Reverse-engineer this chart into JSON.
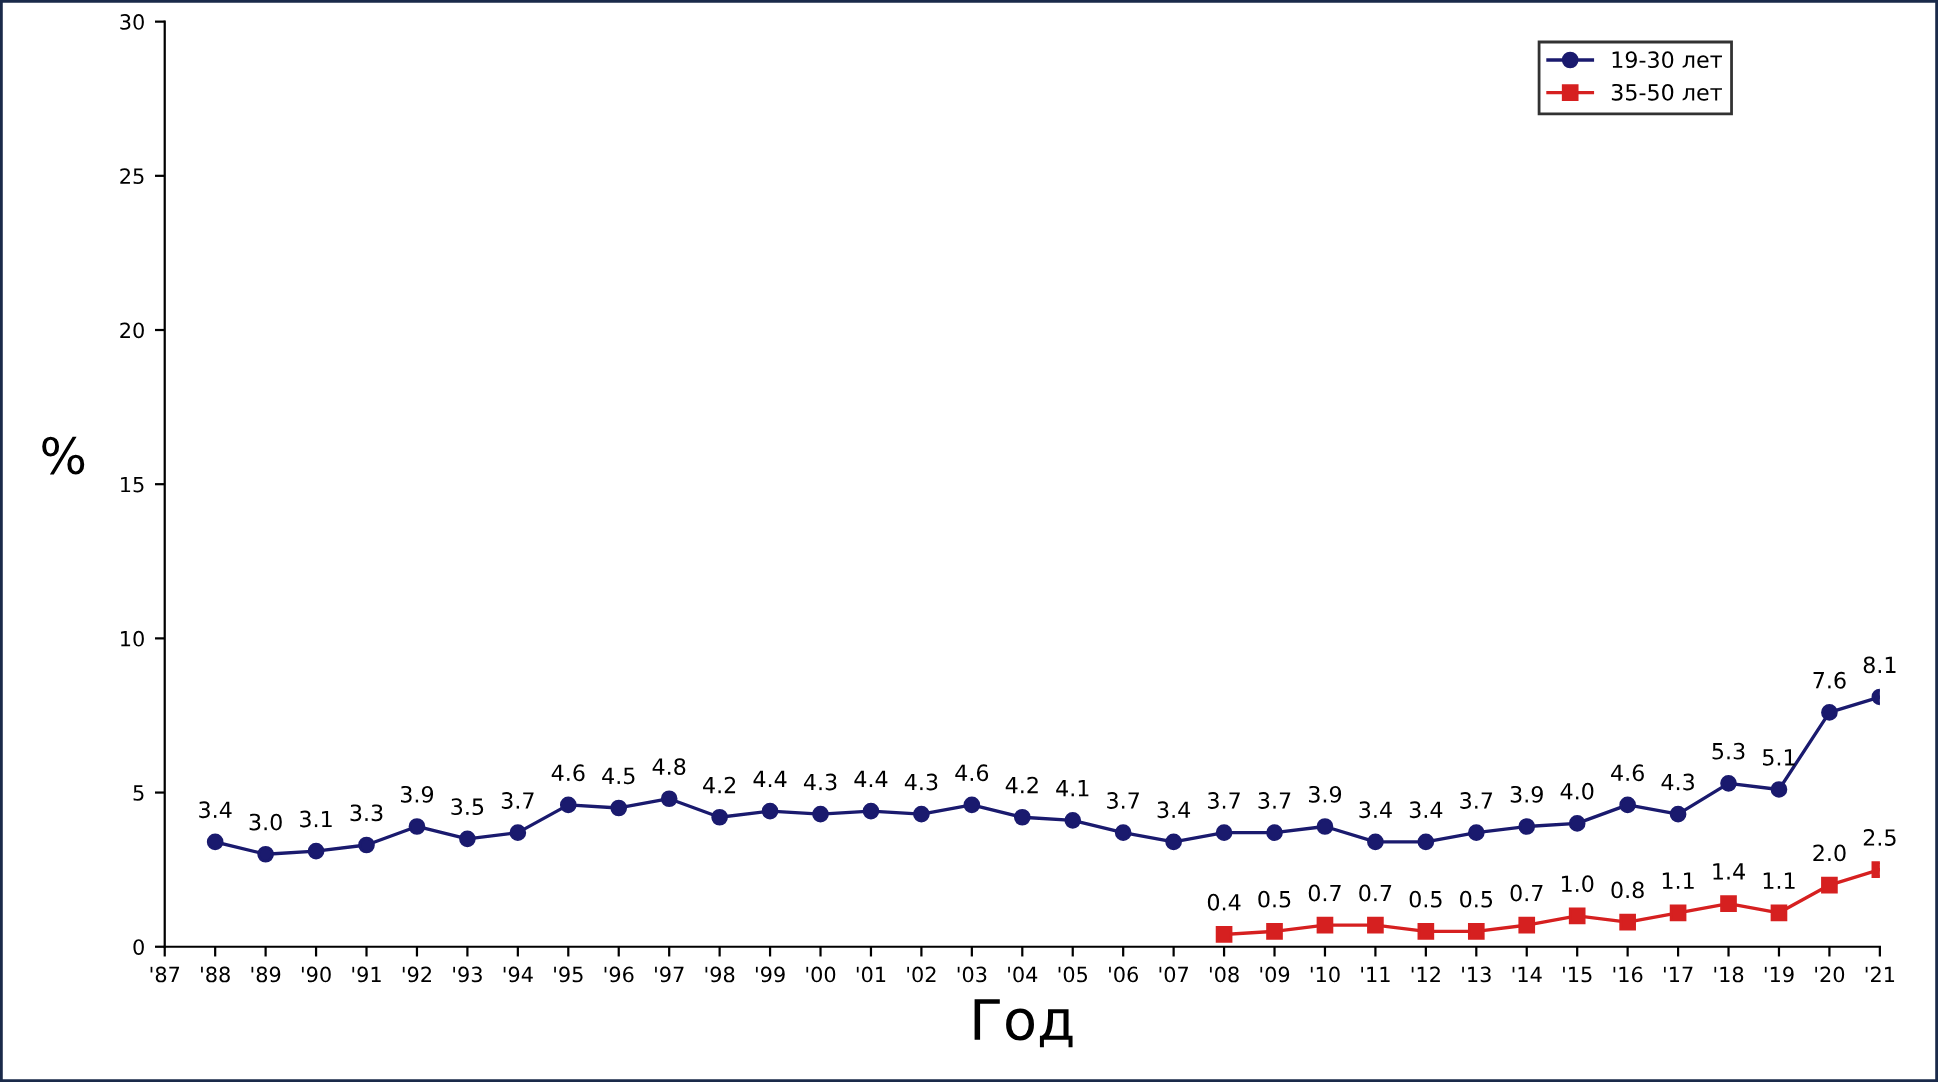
{
  "chart_data": {
    "type": "line",
    "xlabel": "Год",
    "ylabel": "%",
    "categories": [
      "'87",
      "'88",
      "'89",
      "'90",
      "'91",
      "'92",
      "'93",
      "'94",
      "'95",
      "'96",
      "'97",
      "'98",
      "'99",
      "'00",
      "'01",
      "'02",
      "'03",
      "'04",
      "'05",
      "'06",
      "'07",
      "'08",
      "'09",
      "'10",
      "'11",
      "'12",
      "'13",
      "'14",
      "'15",
      "'16",
      "'17",
      "'18",
      "'19",
      "'20",
      "'21"
    ],
    "series": [
      {
        "name": "19-30 лет",
        "color": "#1a1a6e",
        "marker": "circle",
        "values": [
          null,
          3.4,
          3.0,
          3.1,
          3.3,
          3.9,
          3.5,
          3.7,
          4.6,
          4.5,
          4.8,
          4.2,
          4.4,
          4.3,
          4.4,
          4.3,
          4.6,
          4.2,
          4.1,
          3.7,
          3.4,
          3.7,
          3.7,
          3.9,
          3.4,
          3.4,
          3.7,
          3.9,
          4.0,
          4.6,
          4.3,
          5.3,
          5.1,
          7.6,
          8.1
        ],
        "value_labels": [
          null,
          "3.4",
          "3.0",
          "3.1",
          "3.3",
          "3.9",
          "3.5",
          "3.7",
          "4.6",
          "4.5",
          "4.8",
          "4.2",
          "4.4",
          "4.3",
          "4.4",
          "4.3",
          "4.6",
          "4.2",
          "4.1",
          "3.7",
          "3.4",
          "3.7",
          "3.7",
          "3.9",
          "3.4",
          "3.4",
          "3.7",
          "3.9",
          "4.0",
          "4.6",
          "4.3",
          "5.3",
          "5.1",
          "7.6",
          "8.1"
        ]
      },
      {
        "name": "35-50 лет",
        "color": "#d62020",
        "marker": "square",
        "values": [
          null,
          null,
          null,
          null,
          null,
          null,
          null,
          null,
          null,
          null,
          null,
          null,
          null,
          null,
          null,
          null,
          null,
          null,
          null,
          null,
          null,
          0.4,
          0.5,
          0.7,
          0.7,
          0.5,
          0.5,
          0.7,
          1.0,
          0.8,
          1.1,
          1.4,
          1.1,
          2.0,
          2.5
        ],
        "value_labels": [
          null,
          null,
          null,
          null,
          null,
          null,
          null,
          null,
          null,
          null,
          null,
          null,
          null,
          null,
          null,
          null,
          null,
          null,
          null,
          null,
          null,
          "0.4",
          "0.5",
          "0.7",
          "0.7",
          "0.5",
          "0.5",
          "0.7",
          "1.0",
          "0.8",
          "1.1",
          "1.4",
          "1.1",
          "2.0",
          "2.5"
        ]
      }
    ],
    "ylim": [
      0,
      30
    ],
    "yticks": [
      0,
      5,
      10,
      15,
      20,
      25,
      30
    ],
    "grid": false,
    "legend": "top right",
    "line_style": "solid"
  }
}
